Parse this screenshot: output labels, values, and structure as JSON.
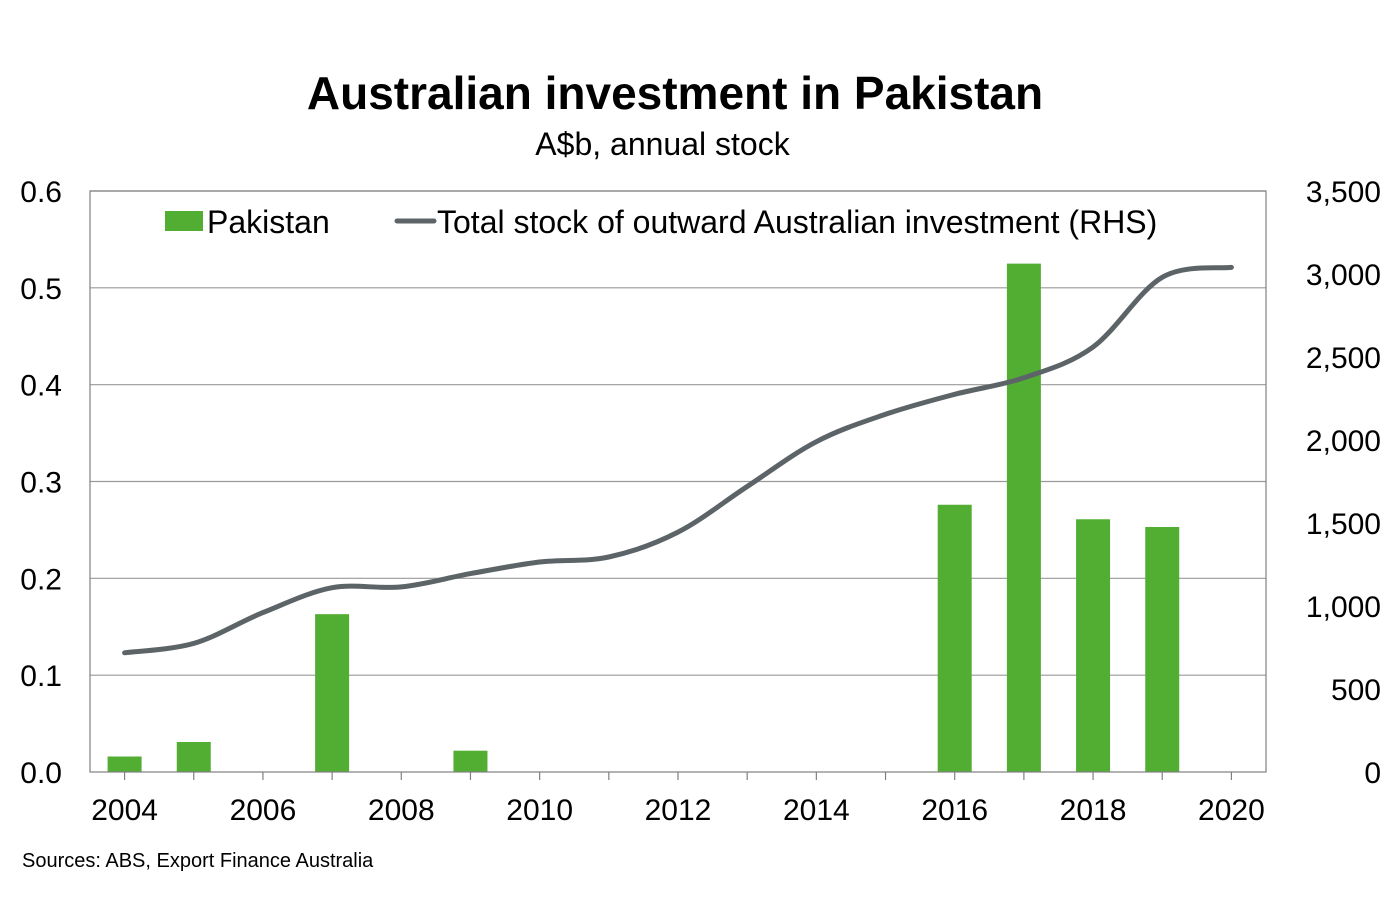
{
  "title": "Australian investment in Pakistan",
  "subtitle": "A$b, annual stock",
  "source": "Sources: ABS, Export Finance Australia",
  "colors": {
    "bar": "#52AE32",
    "line": "#5D6468",
    "grid": "#9A9A9A",
    "axis": "#808080"
  },
  "chart_data": {
    "type": "bar",
    "x_ticks": [
      "2004",
      "2006",
      "2008",
      "2010",
      "2012",
      "2014",
      "2016",
      "2018",
      "2020"
    ],
    "xlim": [
      2003.5,
      2020.5
    ],
    "ylim_left": [
      0,
      0.6
    ],
    "ylim_right": [
      0,
      3500
    ],
    "left_ticks": [
      "0.0",
      "0.1",
      "0.2",
      "0.3",
      "0.4",
      "0.5",
      "0.6"
    ],
    "right_ticks": [
      "0",
      "500",
      "1,000",
      "1,500",
      "2,000",
      "2,500",
      "3,000",
      "3,500"
    ],
    "grid": true,
    "legend_position": "top",
    "series": [
      {
        "name": "Pakistan",
        "type": "bar",
        "axis": "left",
        "x": [
          2004,
          2005,
          2007,
          2009,
          2016,
          2017,
          2018,
          2019
        ],
        "values": [
          0.016,
          0.031,
          0.163,
          0.022,
          0.276,
          0.525,
          0.261,
          0.253
        ]
      },
      {
        "name": "Total stock of outward Australian investment (RHS)",
        "type": "line",
        "axis": "right",
        "x": [
          2004,
          2005,
          2006,
          2007,
          2008,
          2009,
          2010,
          2011,
          2012,
          2013,
          2014,
          2015,
          2016,
          2017,
          2018,
          2019,
          2020
        ],
        "values": [
          718,
          775,
          960,
          1110,
          1115,
          1195,
          1265,
          1295,
          1445,
          1720,
          1990,
          2155,
          2275,
          2375,
          2560,
          2980,
          3040
        ]
      }
    ]
  }
}
